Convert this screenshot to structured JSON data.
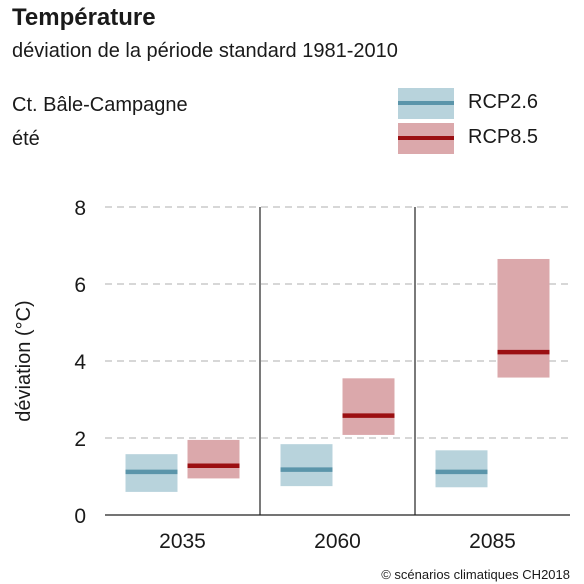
{
  "title": "Température",
  "subtitle": "déviation de la période standard 1981-2010",
  "region": "Ct. Bâle-Campagne",
  "season": "été",
  "credit": "© scénarios climatiques CH2018",
  "colors": {
    "rcp26_box": "#b8d3dc",
    "rcp26_median": "#5b95aa",
    "rcp85_box": "#dba8ab",
    "rcp85_median": "#9b0f12"
  },
  "legend": [
    {
      "name": "RCP2.6",
      "box_color": "#b8d3dc",
      "median_color": "#5b95aa"
    },
    {
      "name": "RCP8.5",
      "box_color": "#dba8ab",
      "median_color": "#9b0f12"
    }
  ],
  "chart_data": {
    "type": "range_bar",
    "title": "Température",
    "subtitle": "déviation de la période standard 1981-2010",
    "ylabel": "déviation (°C)",
    "xlabel": "",
    "ylim": [
      0,
      8
    ],
    "yticks": [
      0,
      2,
      4,
      6,
      8
    ],
    "grid": true,
    "legend_position": "top-right",
    "categories": [
      "2035",
      "2060",
      "2085"
    ],
    "series": [
      {
        "name": "RCP2.6",
        "low": [
          0.6,
          0.75,
          0.72
        ],
        "median": [
          1.12,
          1.18,
          1.12
        ],
        "high": [
          1.58,
          1.84,
          1.68
        ]
      },
      {
        "name": "RCP8.5",
        "low": [
          0.95,
          2.08,
          3.57
        ],
        "median": [
          1.28,
          2.58,
          4.23
        ],
        "high": [
          1.95,
          3.55,
          6.65
        ]
      }
    ]
  }
}
